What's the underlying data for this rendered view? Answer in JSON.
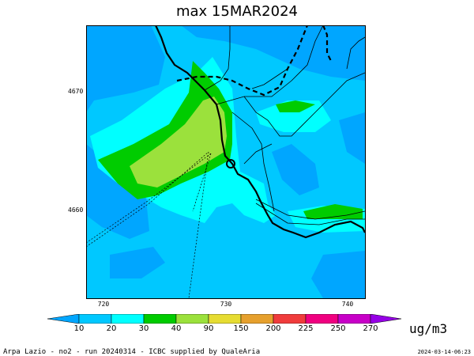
{
  "title": "max 15MAR2024",
  "y_ticks": [
    "4670",
    "4660"
  ],
  "x_ticks": [
    "720",
    "730",
    "740"
  ],
  "colorbar": {
    "labels": [
      "10",
      "20",
      "30",
      "40",
      "90",
      "150",
      "200",
      "225",
      "250",
      "270"
    ],
    "colors": [
      "#00a6ff",
      "#00c8ff",
      "#00ffff",
      "#00cc00",
      "#9be13c",
      "#e6dc32",
      "#e6a02d",
      "#f03c3c",
      "#f00080",
      "#c800c8",
      "#9600e6"
    ],
    "unit": "ug/m3"
  },
  "footer": {
    "left": "Arpa Lazio - no2 - run 20240314 - ICBC supplied by QualeAria",
    "right": "2024-03-14-06:23"
  }
}
